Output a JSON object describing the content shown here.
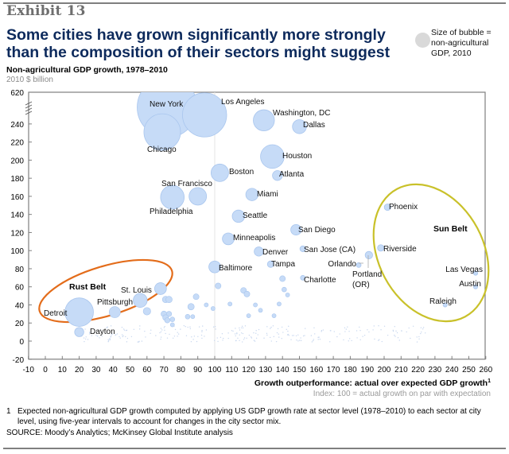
{
  "exhibit": "Exhibit 13",
  "title": "Some cities have grown significantly more strongly than the composition of their sectors might suggest",
  "legend": {
    "text_lines": [
      "Size of bubble =",
      "non-agricultural",
      "GDP, 2010"
    ]
  },
  "subtitle": "Non-agricultural GDP growth, 1978–2010",
  "unit": "2010 $ billion",
  "colors": {
    "bubble_fill": "#c6dbf7",
    "bubble_stroke": "#a9c6ee",
    "rust_belt": "#e36c1a",
    "sun_belt": "#c9c12a",
    "title": "#0d2a5c",
    "axis": "#7f7f7f"
  },
  "chart_data": {
    "type": "scatter",
    "subtype": "bubble",
    "xlabel": "Growth outperformance: actual over expected GDP growth",
    "xlabel_superscript": "1",
    "xlabel_note": "Index: 100 = actual growth on par with expectation",
    "ylabel": "Non-agricultural GDP growth, 1978–2010 (2010 $ billion)",
    "xlim": [
      -10,
      260
    ],
    "ylim": [
      -20,
      250
    ],
    "y_axis_break": {
      "between": [
        240,
        620
      ],
      "top_tick_label": "620"
    },
    "x_ticks": [
      -10,
      0,
      10,
      20,
      30,
      40,
      50,
      60,
      70,
      80,
      90,
      100,
      110,
      120,
      130,
      140,
      150,
      160,
      170,
      180,
      190,
      200,
      210,
      220,
      230,
      240,
      250,
      260
    ],
    "y_ticks": [
      -20,
      0,
      20,
      40,
      60,
      80,
      100,
      120,
      140,
      160,
      180,
      200,
      220,
      240
    ],
    "reference_line_x": 100,
    "grid": false,
    "legend_position": "top-right",
    "labeled_points": [
      {
        "name": "New York",
        "x": 72,
        "y": 620,
        "size": 1300,
        "broken_axis": true
      },
      {
        "name": "Los Angeles",
        "x": 94,
        "y": 250,
        "size": 700
      },
      {
        "name": "Chicago",
        "x": 69,
        "y": 231,
        "size": 480
      },
      {
        "name": "Washington, DC",
        "x": 129,
        "y": 244,
        "size": 160
      },
      {
        "name": "Dallas",
        "x": 150,
        "y": 237,
        "size": 70
      },
      {
        "name": "Houston",
        "x": 134,
        "y": 204,
        "size": 200
      },
      {
        "name": "Boston",
        "x": 103,
        "y": 186,
        "size": 110
      },
      {
        "name": "Atlanta",
        "x": 137,
        "y": 183,
        "size": 35
      },
      {
        "name": "San Francisco",
        "x": 90,
        "y": 160,
        "size": 110
      },
      {
        "name": "Philadelphia",
        "x": 75,
        "y": 159,
        "size": 200
      },
      {
        "name": "Miami",
        "x": 122,
        "y": 162,
        "size": 55
      },
      {
        "name": "Seattle",
        "x": 114,
        "y": 138,
        "size": 55
      },
      {
        "name": "San Diego",
        "x": 148,
        "y": 123,
        "size": 40
      },
      {
        "name": "Minneapolis",
        "x": 108,
        "y": 113,
        "size": 50
      },
      {
        "name": "Denver",
        "x": 126,
        "y": 99,
        "size": 30
      },
      {
        "name": "San Jose (CA)",
        "x": 152,
        "y": 102,
        "size": 12
      },
      {
        "name": "Baltimore",
        "x": 100,
        "y": 82,
        "size": 50
      },
      {
        "name": "Tampa",
        "x": 133,
        "y": 85,
        "size": 15
      },
      {
        "name": "Orlando",
        "x": 185,
        "y": 84,
        "size": 8
      },
      {
        "name": "Portland (OR)",
        "x": 191,
        "y": 95,
        "size": 20
      },
      {
        "name": "Charlotte",
        "x": 152,
        "y": 70,
        "size": 8
      },
      {
        "name": "Phoenix",
        "x": 202,
        "y": 148,
        "size": 15
      },
      {
        "name": "Riverside",
        "x": 198,
        "y": 103,
        "size": 15
      },
      {
        "name": "Las Vegas",
        "x": 254,
        "y": 75,
        "size": 6
      },
      {
        "name": "Austin",
        "x": 254,
        "y": 60,
        "size": 6
      },
      {
        "name": "Raleigh",
        "x": 236,
        "y": 40,
        "size": 6
      },
      {
        "name": "St. Louis",
        "x": 68,
        "y": 58,
        "size": 50
      },
      {
        "name": "Pittsburgh",
        "x": 56,
        "y": 45,
        "size": 70
      },
      {
        "name": "Detroit",
        "x": 20,
        "y": 32,
        "size": 290
      },
      {
        "name": "Dayton",
        "x": 20,
        "y": 10,
        "size": 30
      }
    ],
    "unlabeled_points": [
      {
        "x": 41,
        "y": 32,
        "size": 45
      },
      {
        "x": 60,
        "y": 33,
        "size": 20
      },
      {
        "x": 71,
        "y": 46,
        "size": 15
      },
      {
        "x": 73,
        "y": 46,
        "size": 15
      },
      {
        "x": 70,
        "y": 30,
        "size": 12
      },
      {
        "x": 73,
        "y": 30,
        "size": 10
      },
      {
        "x": 71,
        "y": 26,
        "size": 12
      },
      {
        "x": 72,
        "y": 23,
        "size": 10
      },
      {
        "x": 75,
        "y": 24,
        "size": 8
      },
      {
        "x": 75,
        "y": 18,
        "size": 6
      },
      {
        "x": 86,
        "y": 38,
        "size": 15
      },
      {
        "x": 89,
        "y": 49,
        "size": 12
      },
      {
        "x": 84,
        "y": 27,
        "size": 8
      },
      {
        "x": 87,
        "y": 27,
        "size": 6
      },
      {
        "x": 95,
        "y": 40,
        "size": 6
      },
      {
        "x": 99,
        "y": 36,
        "size": 6
      },
      {
        "x": 102,
        "y": 61,
        "size": 12
      },
      {
        "x": 117,
        "y": 56,
        "size": 12
      },
      {
        "x": 119,
        "y": 52,
        "size": 12
      },
      {
        "x": 109,
        "y": 41,
        "size": 6
      },
      {
        "x": 124,
        "y": 40,
        "size": 6
      },
      {
        "x": 127,
        "y": 34,
        "size": 6
      },
      {
        "x": 140,
        "y": 69,
        "size": 12
      },
      {
        "x": 141,
        "y": 57,
        "size": 8
      },
      {
        "x": 143,
        "y": 51,
        "size": 6
      },
      {
        "x": 138,
        "y": 41,
        "size": 6
      },
      {
        "x": 135,
        "y": 28,
        "size": 6
      },
      {
        "x": 120,
        "y": 28,
        "size": 6
      }
    ],
    "annotations": [
      {
        "text": "Rust Belt",
        "type": "ellipse-group",
        "members": [
          "Detroit",
          "Pittsburgh",
          "St. Louis"
        ]
      },
      {
        "text": "Sun Belt",
        "type": "ellipse-group",
        "members": [
          "Phoenix",
          "Riverside",
          "Las Vegas",
          "Austin",
          "Raleigh"
        ]
      }
    ]
  },
  "footnote": {
    "number": "1",
    "text": "Expected non-agricultural GDP growth computed by applying US GDP growth rate at sector level (1978–2010) to each sector at city level, using five-year intervals to account for changes in the city sector mix."
  },
  "source": "SOURCE: Moody’s Analytics; McKinsey Global Institute analysis"
}
